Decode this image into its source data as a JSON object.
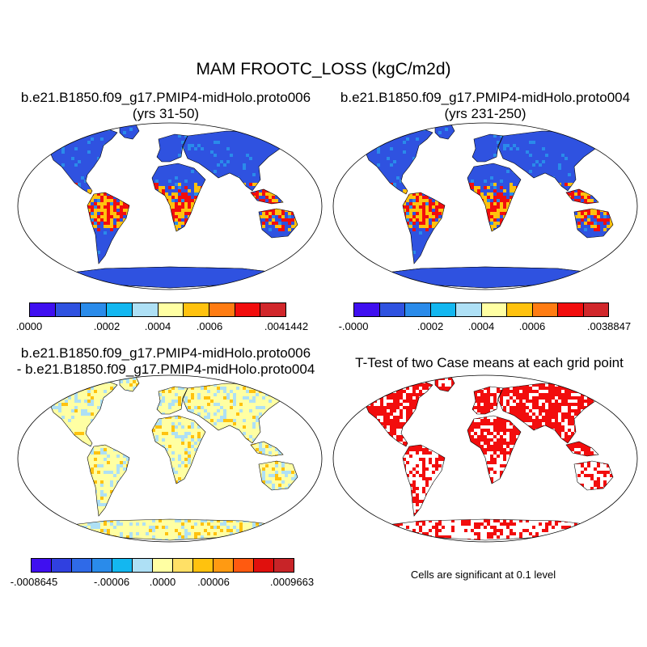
{
  "title": "MAM FROOTC_LOSS (kgC/m2d)",
  "panels": {
    "p1": {
      "title_line1": "b.e21.B1850.f09_g17.PMIP4-midHolo.proto006",
      "title_line2": "(yrs 31-50)"
    },
    "p2": {
      "title_line1": "b.e21.B1850.f09_g17.PMIP4-midHolo.proto004",
      "title_line2": "(yrs 231-250)"
    },
    "p3": {
      "title_line1": "b.e21.B1850.f09_g17.PMIP4-midHolo.proto006",
      "title_line2": "- b.e21.B1850.f09_g17.PMIP4-midHolo.proto004"
    },
    "p4": {
      "title_line1": "T-Test of two Case means at each grid point",
      "note": "Cells are significant at 0.1 level"
    }
  },
  "colorbars": {
    "cb1": {
      "labels": [
        ".0000",
        ".0002",
        ".0004",
        ".0006",
        ".0041442"
      ],
      "colors": [
        "#3f0ff0",
        "#2f52e0",
        "#2a8bea",
        "#13b7f0",
        "#aee0f5",
        "#ffffa3",
        "#ffc20e",
        "#ff7c12",
        "#f20d0d",
        "#d1272b"
      ]
    },
    "cb2": {
      "labels": [
        "-.0000",
        ".0002",
        ".0004",
        ".0006",
        ".0038847"
      ],
      "colors": [
        "#3f0ff0",
        "#2f52e0",
        "#2a8bea",
        "#13b7f0",
        "#aee0f5",
        "#ffffa3",
        "#ffc20e",
        "#ff7c12",
        "#f20d0d",
        "#d1272b"
      ]
    },
    "cb3": {
      "labels": [
        "-.0008645",
        "-.00006",
        ".0000",
        ".00006",
        ".0009663"
      ],
      "colors": [
        "#3f0ff0",
        "#3040e0",
        "#2f6ae8",
        "#2a8bea",
        "#13b7f0",
        "#aee0f5",
        "#ffffa3",
        "#ffe066",
        "#ffc20e",
        "#ff9a12",
        "#ff5a10",
        "#e0100d",
        "#c82428"
      ]
    }
  },
  "map_colors": {
    "ocean": "#ffffff",
    "low": "#2f52e0",
    "mid": "#ffc20e",
    "high": "#f20d0d",
    "diff_base": "#ffffa3",
    "diff_neg": "#aee0f5",
    "sig": "#f20d0d"
  }
}
